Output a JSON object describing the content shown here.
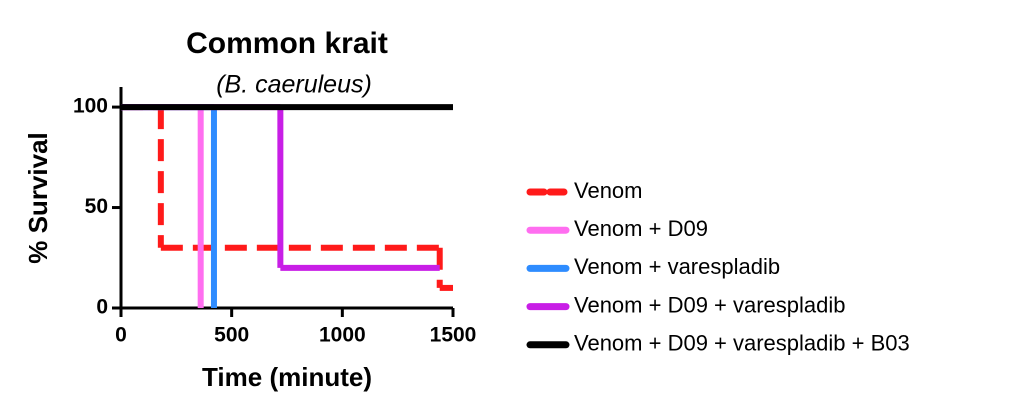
{
  "chart_data": {
    "type": "step",
    "title": "Common krait",
    "subtitle": "(B. caeruleus)",
    "x_label": "Time (minute)",
    "y_label": "% Survival",
    "xlim": [
      0,
      1500
    ],
    "ylim": [
      0,
      110
    ],
    "xticks": [
      0,
      500,
      1000,
      1500
    ],
    "yticks": [
      0,
      50,
      100
    ],
    "series": [
      {
        "name": "Venom",
        "color": "#ff1a1a",
        "dashed": true,
        "x": [
          0,
          180,
          1440,
          1500
        ],
        "values": [
          100,
          30,
          10,
          10
        ]
      },
      {
        "name": "Venom + D09",
        "color": "#ff6ef0",
        "x": [
          0,
          360
        ],
        "values": [
          100,
          0
        ]
      },
      {
        "name": "Venom + varespladib",
        "color": "#2e8cff",
        "x": [
          0,
          420
        ],
        "values": [
          100,
          0
        ]
      },
      {
        "name": "Venom + D09 + varespladib",
        "color": "#c81ee6",
        "x": [
          0,
          720,
          1440
        ],
        "values": [
          100,
          20,
          20
        ]
      },
      {
        "name": "Venom + D09 + varespladib + B03",
        "color": "#000000",
        "x": [
          0,
          1500
        ],
        "values": [
          100,
          100
        ]
      }
    ]
  }
}
